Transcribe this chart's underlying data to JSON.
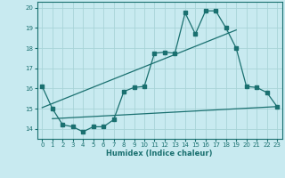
{
  "xlabel": "Humidex (Indice chaleur)",
  "bg_color": "#c8eaf0",
  "grid_color": "#a8d4d8",
  "line_color": "#1a7070",
  "xlim": [
    -0.5,
    23.5
  ],
  "ylim": [
    13.5,
    20.3
  ],
  "yticks": [
    14,
    15,
    16,
    17,
    18,
    19,
    20
  ],
  "xticks": [
    0,
    1,
    2,
    3,
    4,
    5,
    6,
    7,
    8,
    9,
    10,
    11,
    12,
    13,
    14,
    15,
    16,
    17,
    18,
    19,
    20,
    21,
    22,
    23
  ],
  "line1_x": [
    0,
    1,
    2,
    3,
    4,
    5,
    6,
    7,
    8,
    9,
    10,
    11,
    12,
    13,
    14,
    15,
    16,
    17,
    18,
    19,
    20,
    21,
    22,
    23
  ],
  "line1_y": [
    16.1,
    15.0,
    14.2,
    14.1,
    13.85,
    14.1,
    14.1,
    14.45,
    15.85,
    16.05,
    16.1,
    17.75,
    17.8,
    17.75,
    19.75,
    18.7,
    19.85,
    19.85,
    19.0,
    18.0,
    16.1,
    16.05,
    15.8,
    15.1
  ],
  "line2_x": [
    0,
    19
  ],
  "line2_y": [
    15.05,
    18.9
  ],
  "line3_x": [
    1,
    23
  ],
  "line3_y": [
    14.5,
    15.1
  ]
}
